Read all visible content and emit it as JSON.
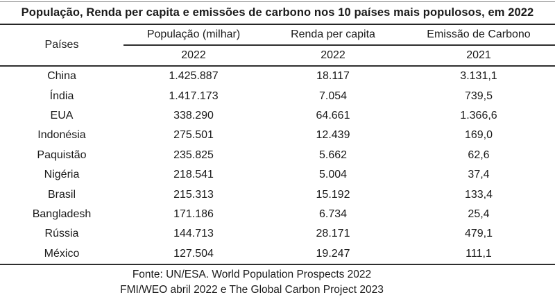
{
  "title": "População, Renda per capita e emissões de carbono nos 10 países mais populosos, em 2022",
  "table": {
    "row_header_label": "Países",
    "column_groups": [
      {
        "label": "População (milhar)",
        "year": "2022"
      },
      {
        "label": "Renda per capita",
        "year": "2022"
      },
      {
        "label": "Emissão de Carbono",
        "year": "2021"
      }
    ],
    "rows": [
      {
        "country": "China",
        "population": "1.425.887",
        "income": "18.117",
        "emissions": "3.131,1"
      },
      {
        "country": "Índia",
        "population": "1.417.173",
        "income": "7.054",
        "emissions": "739,5"
      },
      {
        "country": "EUA",
        "population": "338.290",
        "income": "64.661",
        "emissions": "1.366,6"
      },
      {
        "country": "Indonésia",
        "population": "275.501",
        "income": "12.439",
        "emissions": "169,0"
      },
      {
        "country": "Paquistão",
        "population": "235.825",
        "income": "5.662",
        "emissions": "62,6"
      },
      {
        "country": "Nigéria",
        "population": "218.541",
        "income": "5.004",
        "emissions": "37,4"
      },
      {
        "country": "Brasil",
        "population": "215.313",
        "income": "15.192",
        "emissions": "133,4"
      },
      {
        "country": "Bangladesh",
        "population": "171.186",
        "income": "6.734",
        "emissions": "25,4"
      },
      {
        "country": "Rússia",
        "population": "144.713",
        "income": "28.171",
        "emissions": "479,1"
      },
      {
        "country": "México",
        "population": "127.504",
        "income": "19.247",
        "emissions": "111,1"
      }
    ]
  },
  "footer": {
    "line1": "Fonte: UN/ESA. World Population Prospects 2022",
    "line2": "FMI/WEO abril 2022 e The Global Carbon Project 2023"
  },
  "colors": {
    "rule_dark": "#2e2e2e",
    "rule_light": "#8f8f8f",
    "text": "#1a1a1a",
    "background": "#ffffff"
  }
}
